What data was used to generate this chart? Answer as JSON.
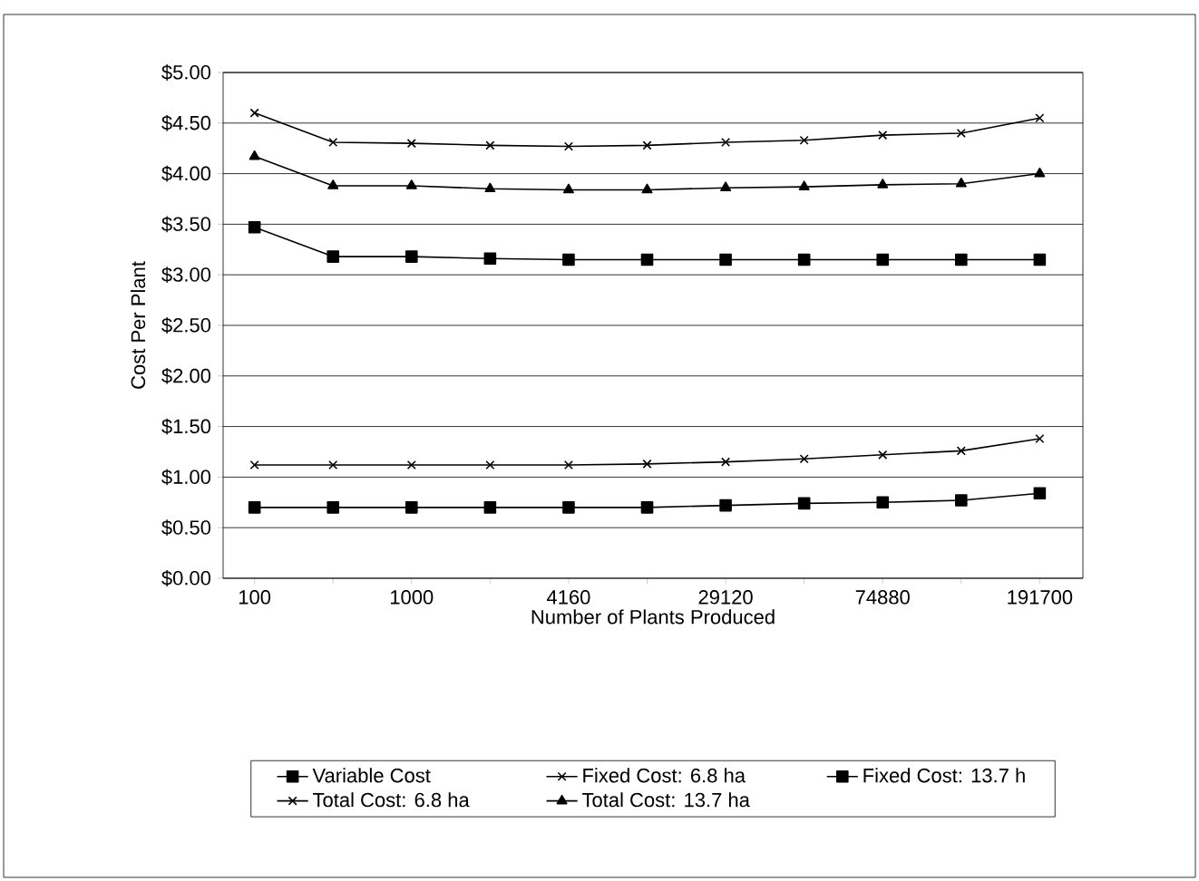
{
  "chart_data": {
    "type": "line",
    "xlabel": "Number of Plants Produced",
    "ylabel": "Cost Per Plant",
    "categories": [
      "100",
      null,
      "1000",
      null,
      "4160",
      null,
      "29120",
      null,
      "74880",
      null,
      "191700"
    ],
    "ylim": [
      0,
      5
    ],
    "yticks": [
      {
        "value": 0,
        "label": "$0.00"
      },
      {
        "value": 0.5,
        "label": "$0.50"
      },
      {
        "value": 1,
        "label": "$1.00"
      },
      {
        "value": 1.5,
        "label": "$1.50"
      },
      {
        "value": 2,
        "label": "$2.00"
      },
      {
        "value": 2.5,
        "label": "$2.50"
      },
      {
        "value": 3,
        "label": "$3.00"
      },
      {
        "value": 3.5,
        "label": "$3.50"
      },
      {
        "value": 4,
        "label": "$4.00"
      },
      {
        "value": 4.5,
        "label": "$4.50"
      },
      {
        "value": 5,
        "label": "$5.00"
      }
    ],
    "grid": "y",
    "legend": "bottom",
    "line_style": "solid",
    "series": [
      {
        "name": "Variable Cost",
        "color": "#000000",
        "marker": "square",
        "values": [
          3.47,
          3.18,
          3.18,
          3.16,
          3.15,
          3.15,
          3.15,
          3.15,
          3.15,
          3.15,
          3.15
        ]
      },
      {
        "name": "Fixed Cost: 6.8 ha",
        "color": "#000000",
        "marker": "cross",
        "values": [
          1.12,
          1.12,
          1.12,
          1.12,
          1.12,
          1.13,
          1.15,
          1.18,
          1.22,
          1.26,
          1.38
        ]
      },
      {
        "name": "Fixed Cost: 13.7 h",
        "color": "#000000",
        "marker": "square",
        "values": [
          0.7,
          0.7,
          0.7,
          0.7,
          0.7,
          0.7,
          0.72,
          0.74,
          0.75,
          0.77,
          0.84
        ]
      },
      {
        "name": "Total Cost: 6.8 ha",
        "color": "#000000",
        "marker": "cross",
        "values": [
          4.6,
          4.31,
          4.3,
          4.28,
          4.27,
          4.28,
          4.31,
          4.33,
          4.38,
          4.4,
          4.55
        ]
      },
      {
        "name": "Total Cost: 13.7 ha",
        "color": "#000000",
        "marker": "triangle",
        "values": [
          4.17,
          3.88,
          3.88,
          3.85,
          3.84,
          3.84,
          3.86,
          3.87,
          3.89,
          3.9,
          4.0
        ]
      }
    ]
  }
}
